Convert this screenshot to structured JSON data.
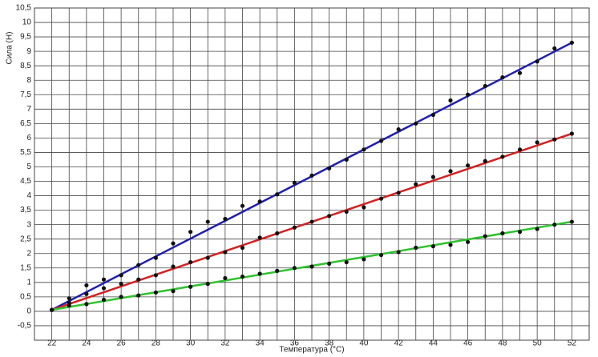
{
  "chart_data": {
    "type": "scatter",
    "x_label": "Температура (°C)",
    "y_label": "Сила (Н)",
    "xlim": [
      21,
      53
    ],
    "ylim": [
      -1,
      10.5
    ],
    "xticks": [
      22,
      24,
      26,
      28,
      30,
      32,
      34,
      36,
      38,
      40,
      42,
      44,
      46,
      48,
      50,
      52
    ],
    "x_minor_ticks": [
      21,
      23,
      25,
      27,
      29,
      31,
      33,
      35,
      37,
      39,
      41,
      43,
      45,
      47,
      49,
      51,
      53
    ],
    "yticks": [
      {
        "value": -0.5,
        "label": "-0,5"
      },
      0,
      {
        "value": 0.5,
        "label": "0,5"
      },
      1,
      {
        "value": 1.5,
        "label": "1,5"
      },
      2,
      {
        "value": 2.5,
        "label": "2,5"
      },
      3,
      {
        "value": 3.5,
        "label": "3,5"
      },
      4,
      {
        "value": 4.5,
        "label": "4,5"
      },
      5,
      {
        "value": 5.5,
        "label": "5,5"
      },
      6,
      {
        "value": 6.5,
        "label": "6,5"
      },
      7,
      {
        "value": 7.5,
        "label": "7,5"
      },
      8,
      {
        "value": 8.5,
        "label": "8,5"
      },
      9,
      {
        "value": 9.5,
        "label": "9,5"
      },
      10,
      {
        "value": 10.5,
        "label": "10,5"
      }
    ],
    "grid": true,
    "marker_color": "#111111",
    "x": [
      22,
      23,
      24,
      25,
      26,
      27,
      28,
      29,
      30,
      31,
      32,
      33,
      34,
      35,
      36,
      37,
      38,
      39,
      40,
      41,
      42,
      43,
      44,
      45,
      46,
      47,
      48,
      49,
      50,
      51,
      52
    ],
    "series": [
      {
        "color": "#1f1fb0",
        "values": [
          0.05,
          0.45,
          0.9,
          1.1,
          1.25,
          1.6,
          1.85,
          2.35,
          2.75,
          3.1,
          3.2,
          3.65,
          3.8,
          4.05,
          4.45,
          4.7,
          4.95,
          5.25,
          5.6,
          5.9,
          6.3,
          6.5,
          6.8,
          7.3,
          7.5,
          7.8,
          8.1,
          8.25,
          8.65,
          9.1,
          9.3
        ],
        "fit": {
          "x": [
            22,
            52
          ],
          "values": [
            0.05,
            9.3
          ]
        }
      },
      {
        "color": "#d42020",
        "values": [
          0.05,
          0.3,
          0.6,
          0.8,
          0.95,
          1.1,
          1.25,
          1.55,
          1.7,
          1.85,
          2.05,
          2.2,
          2.55,
          2.7,
          2.9,
          3.1,
          3.3,
          3.45,
          3.6,
          3.9,
          4.1,
          4.4,
          4.65,
          4.85,
          5.05,
          5.2,
          5.35,
          5.6,
          5.85,
          5.95,
          6.15
        ],
        "fit": {
          "x": [
            22,
            52
          ],
          "values": [
            0.05,
            6.15
          ]
        }
      },
      {
        "color": "#2fc22f",
        "values": [
          0.05,
          0.2,
          0.25,
          0.4,
          0.5,
          0.55,
          0.65,
          0.7,
          0.85,
          0.95,
          1.15,
          1.2,
          1.3,
          1.4,
          1.5,
          1.55,
          1.65,
          1.7,
          1.8,
          1.95,
          2.05,
          2.2,
          2.25,
          2.3,
          2.4,
          2.6,
          2.7,
          2.75,
          2.85,
          3.0,
          3.1
        ],
        "fit": {
          "x": [
            22,
            52
          ],
          "values": [
            0.05,
            3.1
          ]
        }
      }
    ]
  }
}
